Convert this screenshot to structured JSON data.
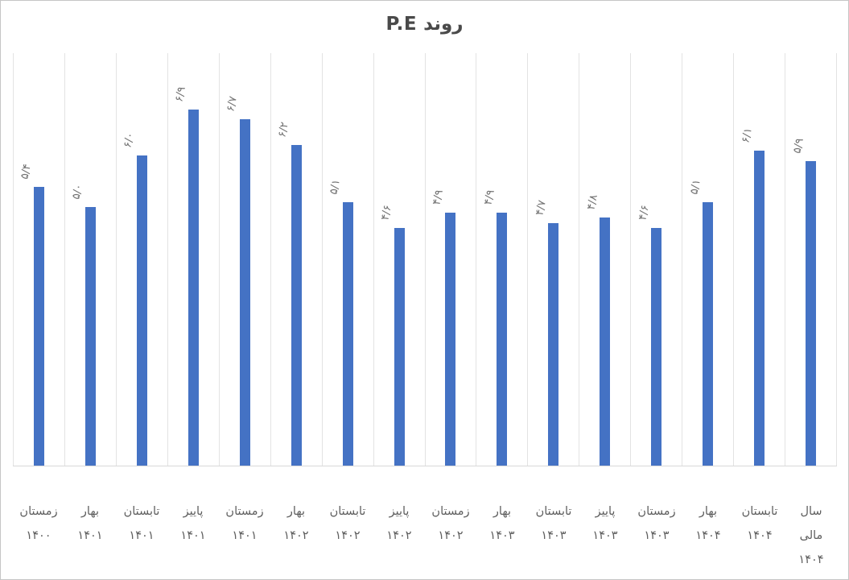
{
  "chart_data": {
    "type": "bar",
    "title": "روند P.E",
    "categories": [
      [
        "زمستان",
        "۱۴۰۰"
      ],
      [
        "بهار",
        "۱۴۰۱"
      ],
      [
        "تابستان",
        "۱۴۰۱"
      ],
      [
        "پاییز",
        "۱۴۰۱"
      ],
      [
        "زمستان",
        "۱۴۰۱"
      ],
      [
        "بهار",
        "۱۴۰۲"
      ],
      [
        "تابستان",
        "۱۴۰۲"
      ],
      [
        "پاییز",
        "۱۴۰۲"
      ],
      [
        "زمستان",
        "۱۴۰۲"
      ],
      [
        "بهار",
        "۱۴۰۳"
      ],
      [
        "تابستان",
        "۱۴۰۳"
      ],
      [
        "پاییز",
        "۱۴۰۳"
      ],
      [
        "زمستان",
        "۱۴۰۳"
      ],
      [
        "بهار",
        "۱۴۰۴"
      ],
      [
        "تابستان",
        "۱۴۰۴"
      ],
      [
        "سال",
        "مالی",
        "۱۴۰۴"
      ]
    ],
    "values": [
      5.4,
      5.0,
      6.0,
      6.9,
      6.7,
      6.2,
      5.1,
      4.6,
      4.9,
      4.9,
      4.7,
      4.8,
      4.6,
      5.1,
      6.1,
      5.9
    ],
    "value_labels": [
      "۵/۴",
      "۵/۰",
      "۶/۰",
      "۶/۹",
      "۶/۷",
      "۶/۲",
      "۵/۱",
      "۴/۶",
      "۴/۹",
      "۴/۹",
      "۴/۷",
      "۴/۸",
      "۴/۶",
      "۵/۱",
      "۶/۱",
      "۵/۹"
    ],
    "xlabel": "",
    "ylabel": "",
    "ylim": [
      0,
      8
    ],
    "bar_color": "#4472C4",
    "value_label_color": "#737373",
    "axis_label_color": "#5f5f5f",
    "gridline_color": "#e3e3e3",
    "grid": "vertical category boundaries only",
    "legend": "none",
    "y_axis_ticks": "none",
    "value_label_rotation_deg": -78
  }
}
